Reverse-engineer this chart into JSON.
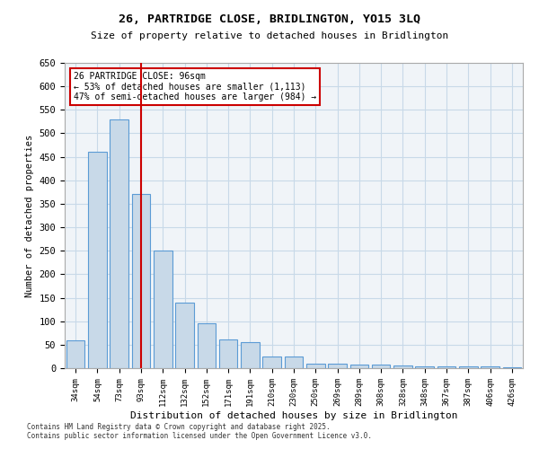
{
  "title": "26, PARTRIDGE CLOSE, BRIDLINGTON, YO15 3LQ",
  "subtitle": "Size of property relative to detached houses in Bridlington",
  "xlabel": "Distribution of detached houses by size in Bridlington",
  "ylabel": "Number of detached properties",
  "categories": [
    "34sqm",
    "54sqm",
    "73sqm",
    "93sqm",
    "112sqm",
    "132sqm",
    "152sqm",
    "171sqm",
    "191sqm",
    "210sqm",
    "230sqm",
    "250sqm",
    "269sqm",
    "289sqm",
    "308sqm",
    "328sqm",
    "348sqm",
    "367sqm",
    "387sqm",
    "406sqm",
    "426sqm"
  ],
  "values": [
    60,
    460,
    530,
    370,
    250,
    140,
    95,
    62,
    55,
    25,
    25,
    10,
    10,
    8,
    7,
    6,
    4,
    4,
    3,
    3,
    2
  ],
  "bar_color": "#c8d9e8",
  "bar_edge_color": "#5b9bd5",
  "vline_position": 3,
  "vline_color": "#cc0000",
  "annotation_text": "26 PARTRIDGE CLOSE: 96sqm\n← 53% of detached houses are smaller (1,113)\n47% of semi-detached houses are larger (984) →",
  "annotation_box_color": "#ffffff",
  "annotation_box_edge_color": "#cc0000",
  "ylim": [
    0,
    650
  ],
  "yticks": [
    0,
    50,
    100,
    150,
    200,
    250,
    300,
    350,
    400,
    450,
    500,
    550,
    600,
    650
  ],
  "footer_line1": "Contains HM Land Registry data © Crown copyright and database right 2025.",
  "footer_line2": "Contains public sector information licensed under the Open Government Licence v3.0.",
  "background_color": "#ffffff",
  "grid_color": "#c8d9e8"
}
